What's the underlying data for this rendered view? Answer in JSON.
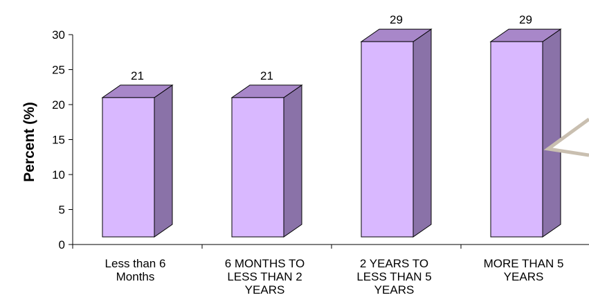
{
  "chart_data": {
    "type": "bar",
    "title": "",
    "xlabel": "",
    "ylabel": "Percent  (%)",
    "ylim": [
      0,
      30
    ],
    "yticks": [
      0,
      5,
      10,
      15,
      20,
      25,
      30
    ],
    "categories": [
      [
        "Less than 6",
        "Months"
      ],
      [
        "6 MONTHS TO",
        "LESS THAN 2",
        "YEARS"
      ],
      [
        "2 YEARS TO",
        "LESS THAN 5",
        "YEARS"
      ],
      [
        "MORE THAN 5",
        "YEARS"
      ]
    ],
    "values": [
      21,
      21,
      29,
      29
    ],
    "data_labels": [
      "21",
      "21",
      "29",
      "29"
    ],
    "grid": false,
    "legend": "none",
    "colors": {
      "bar_front": "#d9b8ff",
      "bar_top": "#a887c9",
      "bar_side": "#8a72a8",
      "edge": "#000000",
      "callout": "#c9bfb0"
    }
  }
}
